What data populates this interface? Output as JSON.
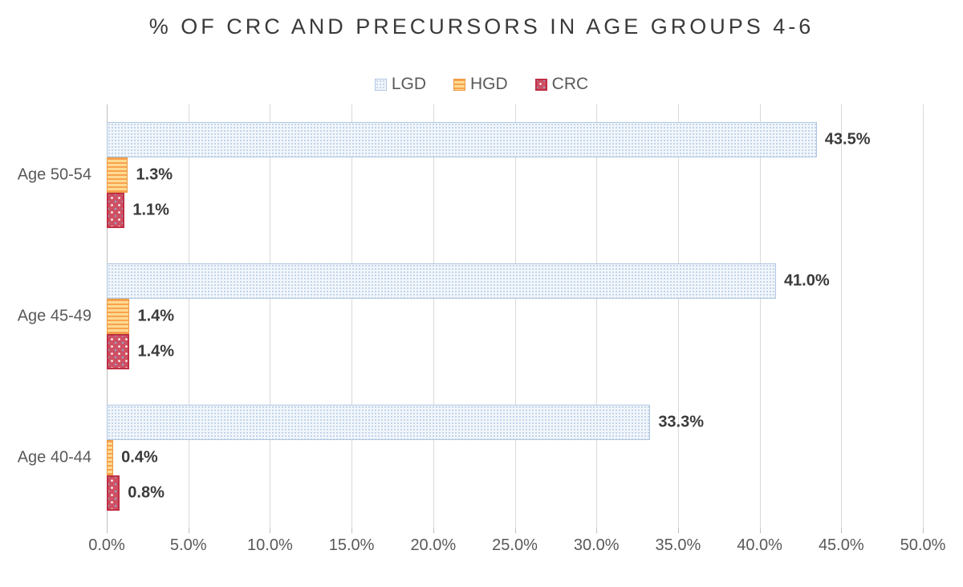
{
  "title": "% OF CRC AND PRECURSORS IN AGE GROUPS 4-6",
  "legend": [
    {
      "label": "LGD",
      "swatch": "lgd-pattern-swatch"
    },
    {
      "label": "HGD",
      "swatch": "hgd-pattern-swatch"
    },
    {
      "label": "CRC",
      "swatch": "crc-pattern-swatch"
    }
  ],
  "colors": {
    "lgd_fill": "#f2f6fb",
    "lgd_dot": "#bcd0e8",
    "lgd_border": "#b0c7e0",
    "hgd_stripe_dark": "#f8a24e",
    "hgd_stripe_light": "#fdda92",
    "hgd_border": "#eb9a43",
    "crc_fill": "#cf5063",
    "crc_border": "#c02e44",
    "gridline": "#d9d9d9",
    "axis_line": "#bfbfbf",
    "title_text": "#3a3a3a",
    "axis_text": "#595959",
    "data_label_text": "#3a3a3a"
  },
  "chart_data": {
    "type": "bar",
    "orientation": "horizontal",
    "title": "% OF CRC AND PRECURSORS IN AGE GROUPS 4-6",
    "categories": [
      "Age 50-54",
      "Age 45-49",
      "Age 40-44"
    ],
    "series": [
      {
        "name": "LGD",
        "values": [
          43.5,
          41.0,
          33.3
        ]
      },
      {
        "name": "HGD",
        "values": [
          1.3,
          1.4,
          0.4
        ]
      },
      {
        "name": "CRC",
        "values": [
          1.1,
          1.4,
          0.8
        ]
      }
    ],
    "data_labels": [
      [
        "43.5%",
        "1.3%",
        "1.1%"
      ],
      [
        "41.0%",
        "1.4%",
        "1.4%"
      ],
      [
        "33.3%",
        "0.4%",
        "0.8%"
      ]
    ],
    "x_axis": {
      "min": 0,
      "max": 50,
      "step": 5,
      "tick_labels": [
        "0.0%",
        "5.0%",
        "10.0%",
        "15.0%",
        "20.0%",
        "25.0%",
        "30.0%",
        "35.0%",
        "40.0%",
        "45.0%",
        "50.0%"
      ]
    },
    "grid": true,
    "legend_position": "top",
    "xlabel": "",
    "ylabel": ""
  }
}
